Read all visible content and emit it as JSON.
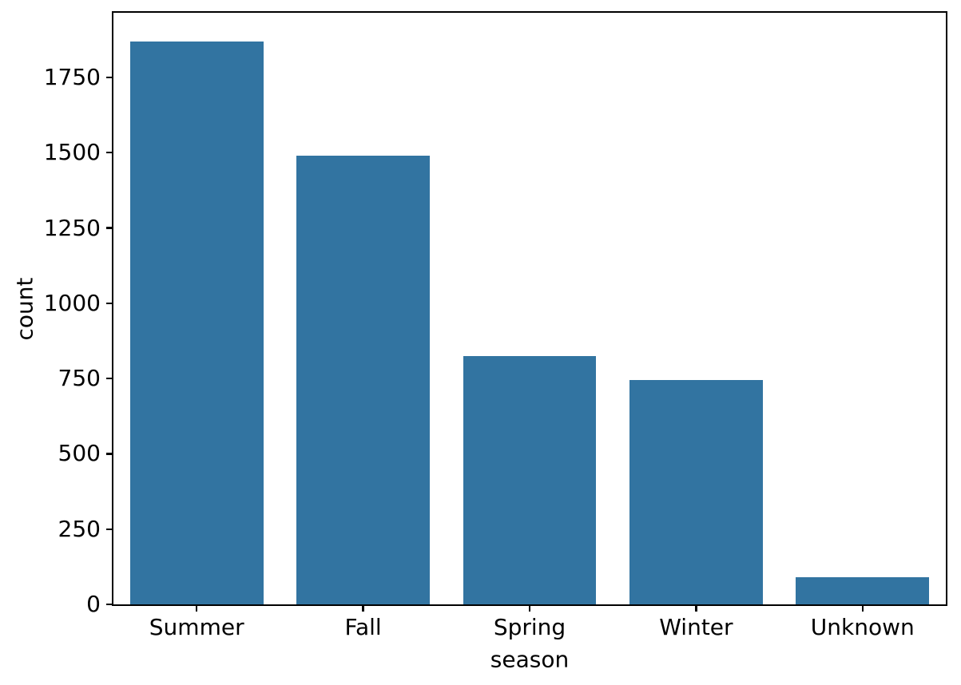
{
  "chart_data": {
    "type": "bar",
    "categories": [
      "Summer",
      "Fall",
      "Spring",
      "Winter",
      "Unknown"
    ],
    "values": [
      1870,
      1490,
      825,
      745,
      90
    ],
    "xlabel": "season",
    "ylabel": "count",
    "yticks": [
      0,
      250,
      500,
      750,
      1000,
      1250,
      1500,
      1750
    ],
    "ylim": [
      0,
      1965
    ],
    "bar_color": "#3274a1",
    "axis_color": "#000000",
    "text_color": "#000000",
    "background": "#ffffff",
    "grid": false,
    "bar_width_frac": 0.8,
    "legend_position": "none"
  }
}
